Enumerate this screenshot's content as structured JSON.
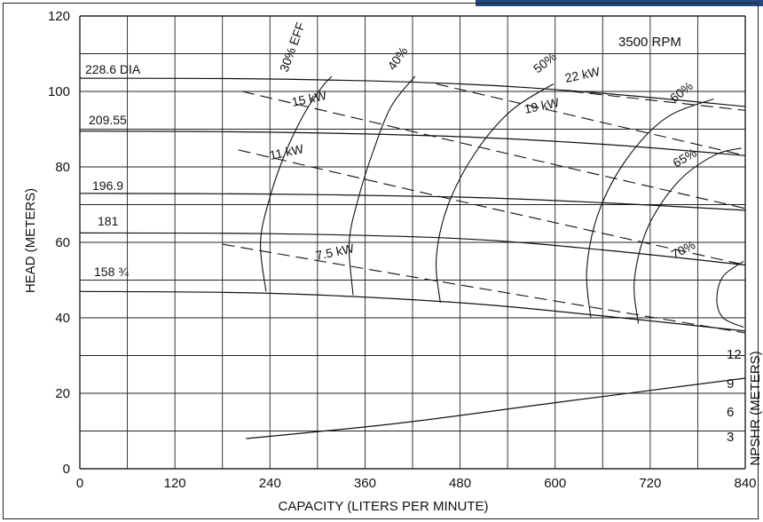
{
  "chart_data": {
    "type": "line",
    "speed_label": "3500 RPM",
    "xlabel": "CAPACITY (LITERS PER MINUTE)",
    "ylabel": "HEAD (METERS)",
    "y2label": "NPSHR (METERS)",
    "xlim": [
      0,
      840
    ],
    "ylim": [
      0,
      120
    ],
    "x_ticks": [
      "0",
      "120",
      "240",
      "360",
      "480",
      "600",
      "720",
      "840"
    ],
    "y_ticks": [
      "0",
      "20",
      "40",
      "60",
      "80",
      "100",
      "120"
    ],
    "y2_ticks": [
      "3",
      "6",
      "9",
      "12"
    ],
    "grid": true,
    "head_curves": [
      {
        "label": "228.6 DIA",
        "points": [
          [
            0,
            103.5
          ],
          [
            240,
            103.3
          ],
          [
            480,
            102
          ],
          [
            660,
            99.5
          ],
          [
            840,
            96
          ]
        ]
      },
      {
        "label": "209.55",
        "points": [
          [
            0,
            89.5
          ],
          [
            240,
            89.2
          ],
          [
            480,
            88
          ],
          [
            660,
            86
          ],
          [
            840,
            83
          ]
        ]
      },
      {
        "label": "196.9",
        "points": [
          [
            0,
            73
          ],
          [
            240,
            72.8
          ],
          [
            480,
            72
          ],
          [
            660,
            70.5
          ],
          [
            840,
            68.5
          ]
        ]
      },
      {
        "label": "181",
        "points": [
          [
            0,
            62.5
          ],
          [
            240,
            62.3
          ],
          [
            480,
            61
          ],
          [
            660,
            58
          ],
          [
            840,
            54
          ]
        ]
      },
      {
        "label": "158 ¾",
        "points": [
          [
            0,
            47
          ],
          [
            240,
            46.5
          ],
          [
            480,
            44
          ],
          [
            660,
            40.5
          ],
          [
            840,
            36.5
          ]
        ]
      }
    ],
    "efficiency_curves": [
      {
        "label": "30% EFF",
        "points": [
          [
            235,
            47
          ],
          [
            228,
            60
          ],
          [
            240,
            72
          ],
          [
            260,
            84
          ],
          [
            283,
            94
          ],
          [
            305,
            101
          ],
          [
            318,
            104
          ]
        ]
      },
      {
        "label": "40%",
        "points": [
          [
            345,
            46
          ],
          [
            340,
            60
          ],
          [
            352,
            72
          ],
          [
            370,
            84
          ],
          [
            393,
            96
          ],
          [
            423,
            104
          ]
        ]
      },
      {
        "label": "50%",
        "points": [
          [
            455,
            44
          ],
          [
            450,
            56
          ],
          [
            465,
            70
          ],
          [
            500,
            84
          ],
          [
            545,
            95
          ],
          [
            598,
            102
          ]
        ]
      },
      {
        "label": "60%",
        "points": [
          [
            645,
            40
          ],
          [
            640,
            53
          ],
          [
            655,
            68
          ],
          [
            690,
            82
          ],
          [
            740,
            93
          ],
          [
            800,
            98
          ]
        ]
      },
      {
        "label": "65%",
        "points": [
          [
            705,
            38.5
          ],
          [
            700,
            50
          ],
          [
            717,
            64
          ],
          [
            755,
            76
          ],
          [
            800,
            83
          ],
          [
            835,
            85
          ]
        ]
      },
      {
        "label": "70%",
        "points": [
          [
            838,
            37.5
          ],
          [
            812,
            40
          ],
          [
            804,
            45
          ],
          [
            812,
            51
          ],
          [
            838,
            55
          ]
        ]
      }
    ],
    "power_curves": [
      {
        "label": "7.5 kW",
        "points": [
          [
            180,
            59.5
          ],
          [
            500,
            48
          ],
          [
            840,
            36
          ]
        ]
      },
      {
        "label": "11 kW",
        "points": [
          [
            200,
            84.5
          ],
          [
            520,
            69
          ],
          [
            840,
            54
          ]
        ]
      },
      {
        "label": "15 kW",
        "points": [
          [
            205,
            100
          ],
          [
            540,
            83.5
          ],
          [
            840,
            69
          ]
        ]
      },
      {
        "label": "19 kW",
        "points": [
          [
            450,
            102
          ],
          [
            840,
            83
          ]
        ]
      },
      {
        "label": "22 kW",
        "points": [
          [
            620,
            100
          ],
          [
            840,
            95
          ]
        ]
      }
    ],
    "npshr_curve": {
      "points": [
        [
          210,
          8
        ],
        [
          400,
          12
        ],
        [
          600,
          17.5
        ],
        [
          840,
          24
        ]
      ]
    }
  }
}
